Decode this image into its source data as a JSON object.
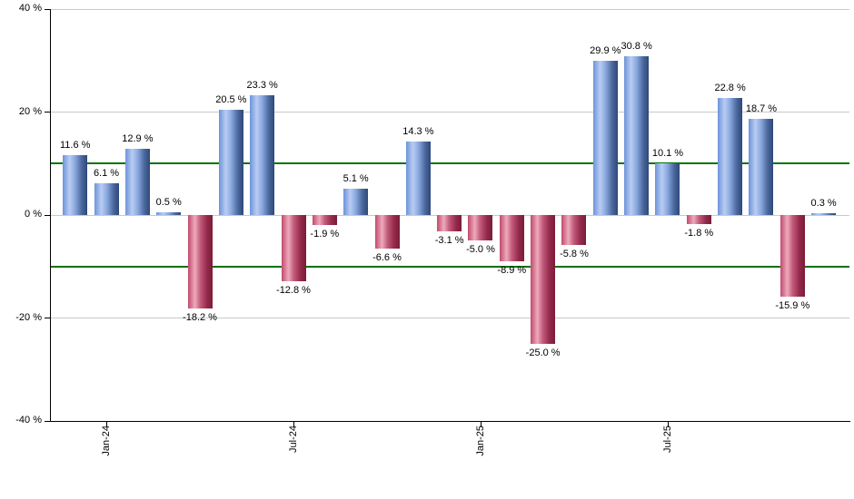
{
  "chart_data": {
    "type": "bar",
    "title": "",
    "xlabel": "",
    "ylabel": "",
    "ylim": [
      -40,
      40
    ],
    "grid": "horizontal",
    "legend": "none",
    "values": [
      11.6,
      6.1,
      12.9,
      0.5,
      -18.2,
      20.5,
      23.3,
      -12.8,
      -1.9,
      5.1,
      -6.6,
      14.3,
      -3.1,
      -5.0,
      -8.9,
      -25.0,
      -5.8,
      29.9,
      30.8,
      10.1,
      -1.8,
      22.8,
      18.7,
      -15.9,
      0.3
    ],
    "bar_labels": [
      "11.6 %",
      "6.1 %",
      "12.9 %",
      "0.5 %",
      "-18.2 %",
      "20.5 %",
      "23.3 %",
      "-12.8 %",
      "-1.9 %",
      "5.1 %",
      "-6.6 %",
      "14.3 %",
      "-3.1 %",
      "-5.0 %",
      "-8.9 %",
      "-25.0 %",
      "-5.8 %",
      "29.9 %",
      "30.8 %",
      "10.1 %",
      "-1.8 %",
      "22.8 %",
      "18.7 %",
      "-15.9 %",
      "0.3 %"
    ],
    "x_ticks": [
      {
        "label": "Jan-24",
        "bar_index": 1
      },
      {
        "label": "Jul-24",
        "bar_index": 7
      },
      {
        "label": "Jan-25",
        "bar_index": 13
      },
      {
        "label": "Jul-25",
        "bar_index": 19
      }
    ],
    "y_ticks": [
      {
        "label": "40 %",
        "value": 40
      },
      {
        "label": "20 %",
        "value": 20
      },
      {
        "label": "0 %",
        "value": 0
      },
      {
        "label": "-20 %",
        "value": -20
      },
      {
        "label": "-40 %",
        "value": -40
      }
    ],
    "gridline_values": [
      40,
      20,
      0,
      -20
    ],
    "threshold_lines": {
      "values": [
        10,
        -10
      ],
      "color": "#067306"
    },
    "colors": {
      "positive_bar_edge": "#2e4878",
      "positive_bar_highlight": "#b9cdf2",
      "negative_bar_edge": "#7a1c38",
      "negative_bar_highlight": "#eeaabc",
      "gridline": "#c9c9c9",
      "axis": "#000000",
      "text": "#000000",
      "background": "#ffffff"
    }
  }
}
